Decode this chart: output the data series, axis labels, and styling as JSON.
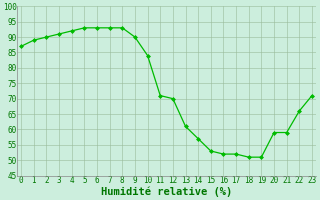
{
  "x": [
    0,
    1,
    2,
    3,
    4,
    5,
    6,
    7,
    8,
    9,
    10,
    11,
    12,
    13,
    14,
    15,
    16,
    17,
    18,
    19,
    20,
    21,
    22,
    23
  ],
  "y": [
    87,
    89,
    90,
    91,
    92,
    93,
    93,
    93,
    93,
    90,
    84,
    71,
    70,
    61,
    57,
    53,
    52,
    52,
    51,
    51,
    59,
    59,
    66,
    71
  ],
  "xlabel": "Humidité relative (%)",
  "ylim": [
    45,
    100
  ],
  "xlim": [
    -0.3,
    23.3
  ],
  "yticks": [
    45,
    50,
    55,
    60,
    65,
    70,
    75,
    80,
    85,
    90,
    95,
    100
  ],
  "xticks": [
    0,
    1,
    2,
    3,
    4,
    5,
    6,
    7,
    8,
    9,
    10,
    11,
    12,
    13,
    14,
    15,
    16,
    17,
    18,
    19,
    20,
    21,
    22,
    23
  ],
  "line_color": "#00bb00",
  "marker_color": "#00bb00",
  "bg_color": "#cceedd",
  "grid_color": "#99bb99",
  "tick_label_fontsize": 5.5,
  "xlabel_fontsize": 7.5
}
